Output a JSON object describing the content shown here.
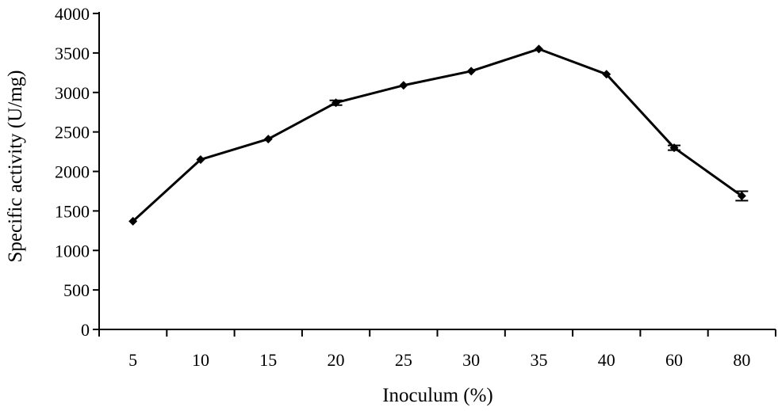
{
  "chart_data": {
    "type": "line",
    "title": "",
    "xlabel": "Inoculum (%)",
    "ylabel": "Specific activity (U/mg)",
    "categories": [
      "5",
      "10",
      "15",
      "20",
      "25",
      "30",
      "35",
      "40",
      "60",
      "80"
    ],
    "series": [
      {
        "values": [
          1370,
          2150,
          2410,
          2870,
          3090,
          3270,
          3550,
          3230,
          2300,
          1690
        ],
        "errors": [
          0,
          0,
          0,
          30,
          0,
          0,
          0,
          0,
          30,
          60
        ]
      }
    ],
    "ylim": [
      0,
      4000
    ],
    "yticks": [
      0,
      500,
      1000,
      1500,
      2000,
      2500,
      3000,
      3500,
      4000
    ],
    "grid": false,
    "legend": "none",
    "line_color": "#000000"
  }
}
